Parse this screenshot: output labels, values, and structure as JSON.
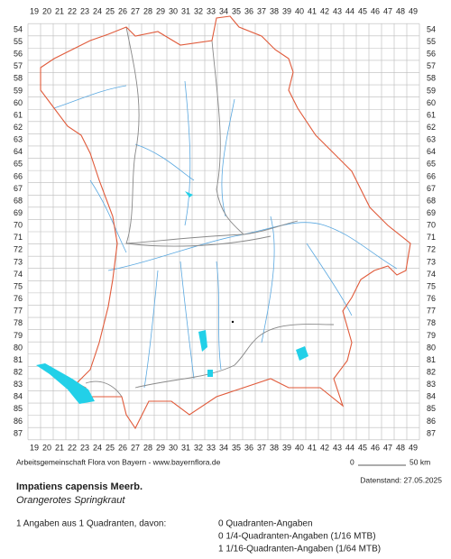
{
  "map": {
    "columns": [
      19,
      20,
      21,
      22,
      23,
      24,
      25,
      26,
      27,
      28,
      29,
      30,
      31,
      32,
      33,
      34,
      35,
      36,
      37,
      38,
      39,
      40,
      41,
      42,
      43,
      44,
      45,
      46,
      47,
      48,
      49
    ],
    "rows": [
      54,
      55,
      56,
      57,
      58,
      59,
      60,
      61,
      62,
      63,
      64,
      65,
      66,
      67,
      68,
      69,
      70,
      71,
      72,
      73,
      74,
      75,
      76,
      77,
      78,
      79,
      80,
      81,
      82,
      83,
      84,
      85,
      86,
      87
    ]
  },
  "footer": {
    "source": "Arbeitsgemeinschaft Flora von Bayern - www.bayernflora.de",
    "scale_start": "0",
    "scale_end": "50 km",
    "date": "Datenstand: 27.05.2025"
  },
  "species": {
    "scientific": "Impatiens capensis Meerb.",
    "common": "Orangerotes Springkraut"
  },
  "summary": {
    "total": "1 Angaben aus 1 Quadranten, davon:",
    "lines": [
      "0 Quadranten-Angaben",
      "0 1/4-Quadranten-Angaben (1/16 MTB)",
      "1 1/16-Quadranten-Angaben (1/64 MTB)"
    ]
  }
}
